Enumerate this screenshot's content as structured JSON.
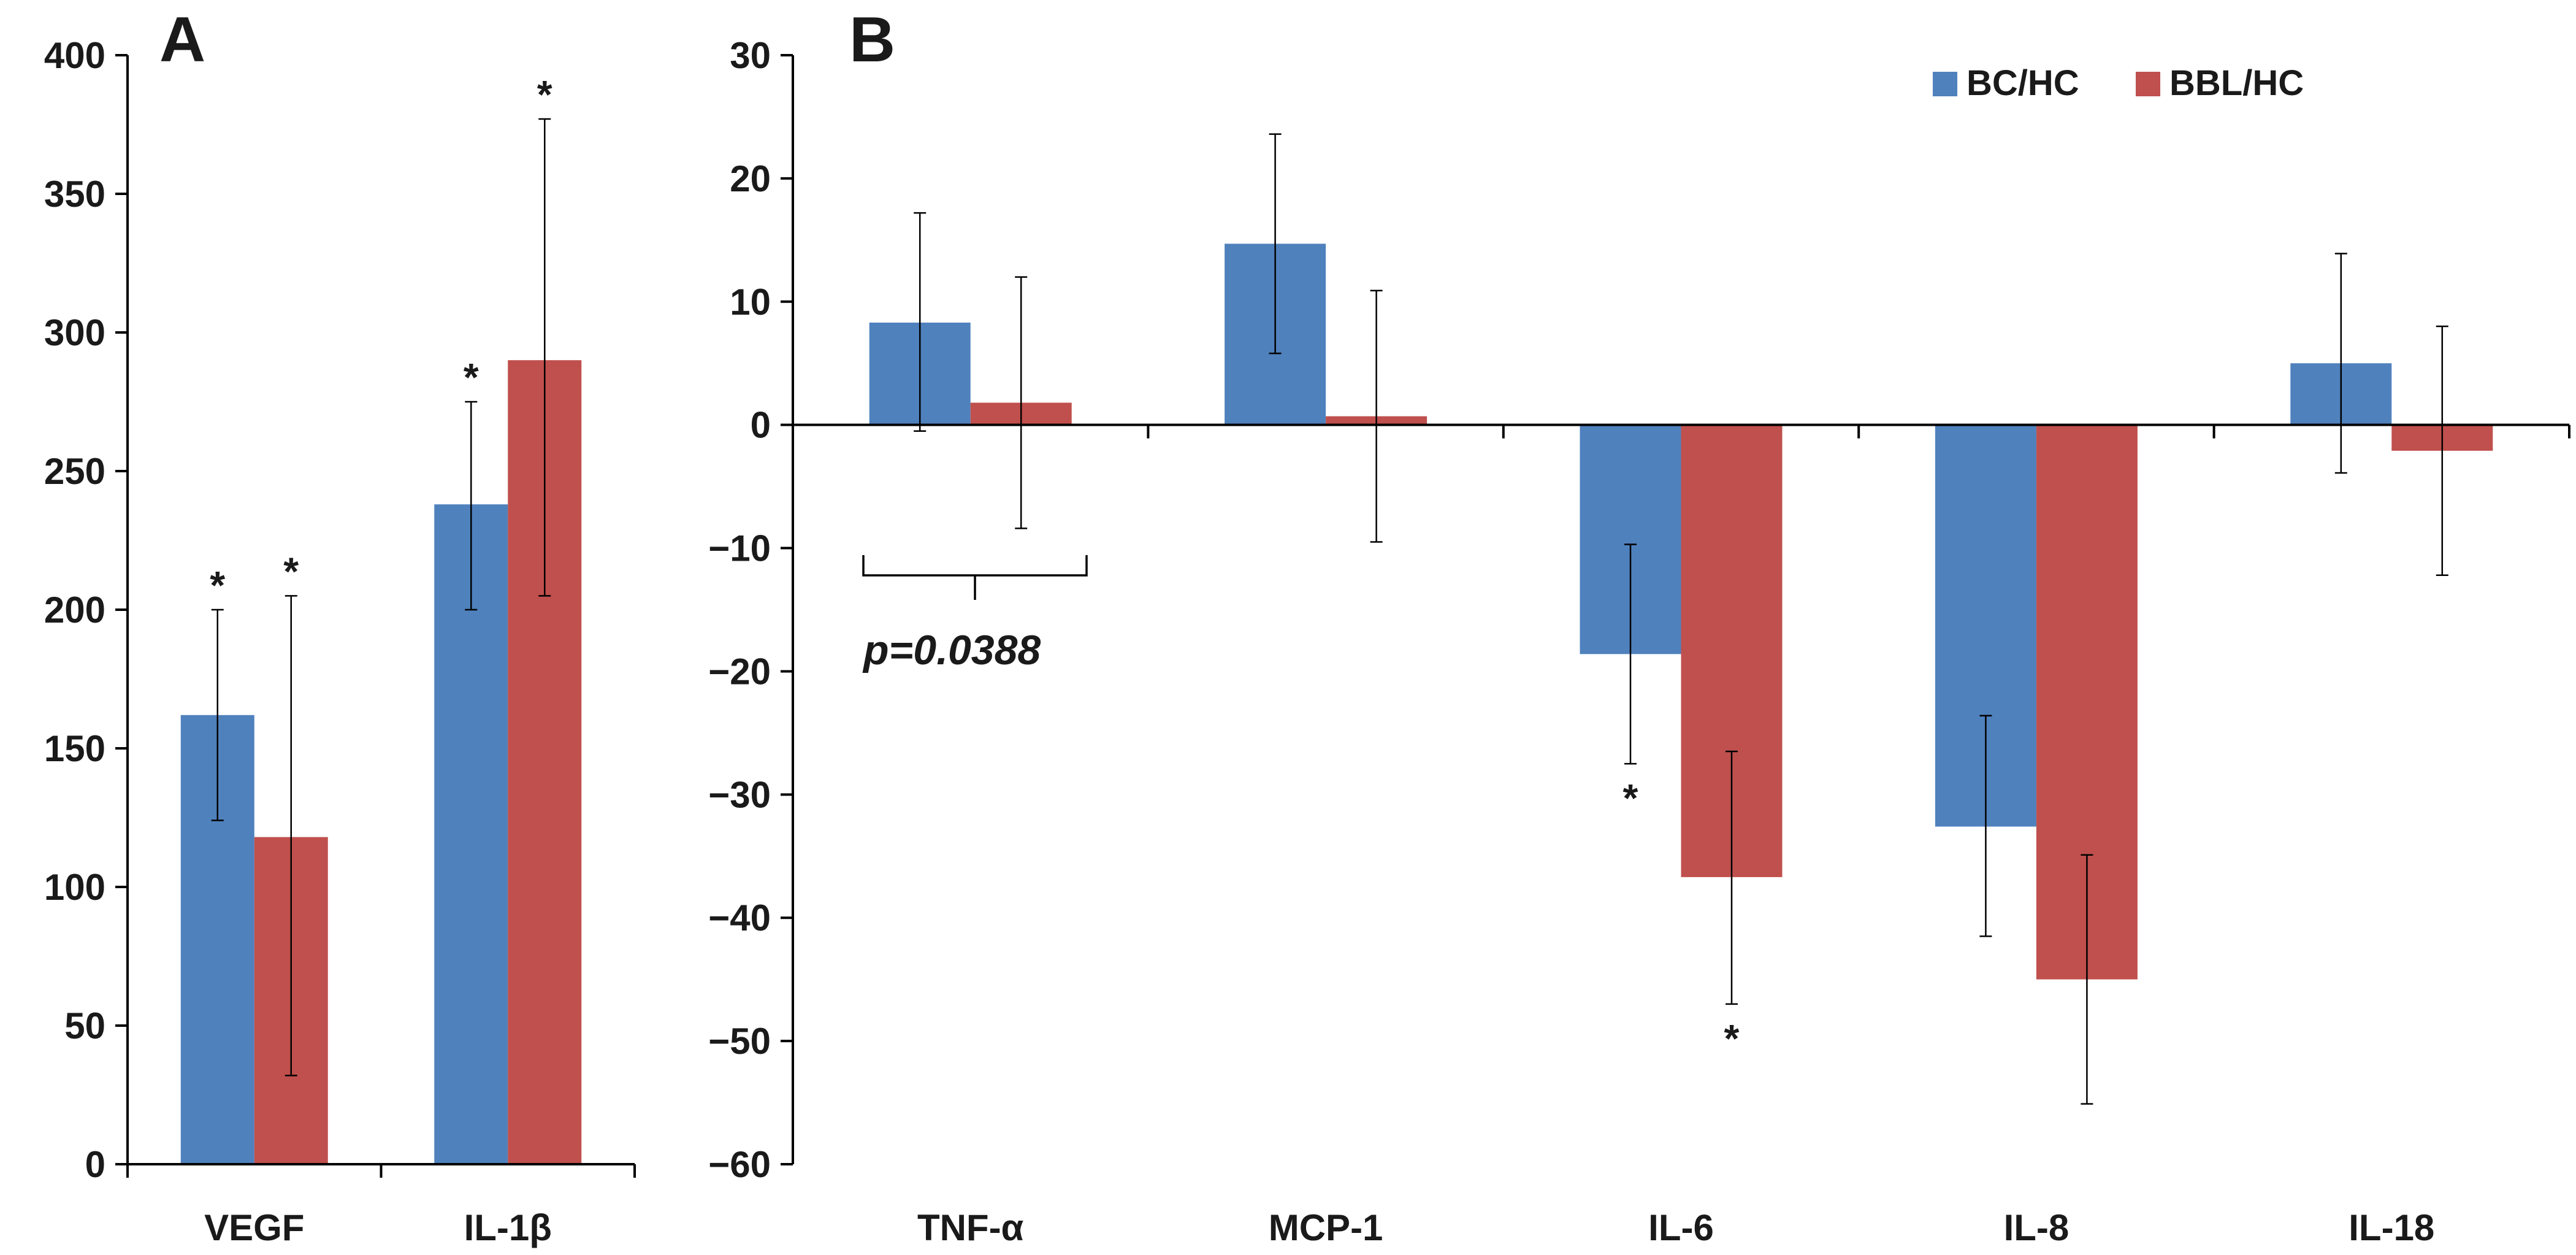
{
  "panels": {
    "a_label": "A",
    "b_label": "B"
  },
  "annotation": {
    "p_value": "p=0.0388"
  },
  "colors": {
    "bc_hc": "#4F81BD",
    "bbl_hc": "#C0504D",
    "axis": "#000000"
  },
  "chart_data": [
    {
      "panel": "A",
      "type": "bar",
      "categories": [
        "VEGF",
        "IL-1β"
      ],
      "ylim": [
        0,
        400
      ],
      "yticks": [
        0,
        50,
        100,
        150,
        200,
        250,
        300,
        350,
        400
      ],
      "series": [
        {
          "key": "bc_hc",
          "values": [
            162,
            238
          ],
          "err_low": [
            124,
            200
          ],
          "err_high": [
            200,
            275
          ],
          "sig": [
            "*",
            "*"
          ]
        },
        {
          "key": "bbl_hc",
          "values": [
            118,
            290
          ],
          "err_low": [
            32,
            205
          ],
          "err_high": [
            205,
            377
          ],
          "sig": [
            "*",
            "*"
          ]
        }
      ],
      "grid": false,
      "legend": null
    },
    {
      "panel": "B",
      "type": "bar",
      "categories": [
        "TNF-α",
        "MCP-1",
        "IL-6",
        "IL-8",
        "IL-18"
      ],
      "ylim": [
        -60,
        30
      ],
      "yticks": [
        -60,
        -50,
        -40,
        -30,
        -20,
        -10,
        0,
        10,
        20,
        30
      ],
      "series": [
        {
          "name": "BC/HC",
          "key": "bc_hc",
          "values": [
            8.3,
            14.7,
            -18.6,
            -32.6,
            5.0
          ],
          "err_low": [
            -0.5,
            5.8,
            -27.5,
            -41.5,
            -3.9
          ],
          "err_high": [
            17.2,
            23.6,
            -9.7,
            -23.6,
            13.9
          ],
          "sig": [
            "",
            "",
            "*",
            "",
            ""
          ]
        },
        {
          "name": "BBL/HC",
          "key": "bbl_hc",
          "values": [
            1.8,
            0.7,
            -36.7,
            -45.0,
            -2.1
          ],
          "err_low": [
            -8.4,
            -9.5,
            -47.0,
            -55.1,
            -12.2
          ],
          "err_high": [
            12.0,
            10.9,
            -26.5,
            -34.9,
            8.0
          ],
          "sig": [
            "",
            "",
            "*",
            "",
            ""
          ]
        }
      ],
      "grid": false,
      "legend": "top-right"
    }
  ]
}
